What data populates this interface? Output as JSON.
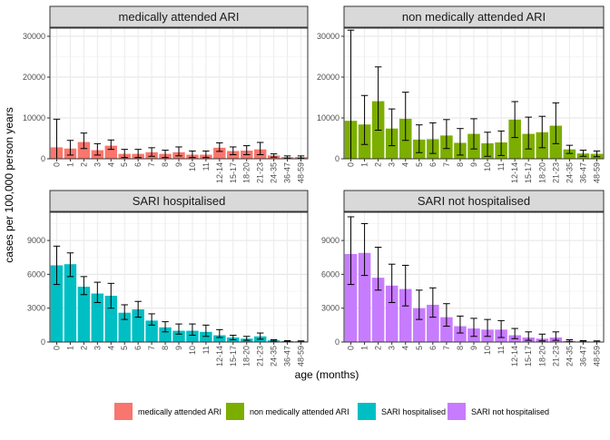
{
  "chart_data": {
    "type": "bar",
    "facet_layout": "2x2",
    "ylabel": "cases per 100,000 person years",
    "xlabel": "age (months)",
    "legend": {
      "position": "bottom",
      "entries": [
        {
          "name": "medically attended ARI",
          "color": "#F8766D"
        },
        {
          "name": "non medically attended ARI",
          "color": "#7CAE00"
        },
        {
          "name": "SARI hospitalised",
          "color": "#00BFC4"
        },
        {
          "name": "SARI not hospitalised",
          "color": "#C77CFF"
        }
      ]
    },
    "categories": [
      "0",
      "1",
      "2",
      "3",
      "4",
      "5",
      "6",
      "7",
      "8",
      "9",
      "10",
      "11",
      "12-14",
      "15-17",
      "18-20",
      "21-23",
      "24-35",
      "36-47",
      "48-59"
    ],
    "panels": [
      {
        "title": "medically attended ARI",
        "color": "#F8766D",
        "ylim": [
          0,
          32000
        ],
        "yticks": [
          0,
          10000,
          20000,
          30000
        ],
        "values": [
          2800,
          2500,
          4100,
          2100,
          3200,
          1200,
          1200,
          1600,
          1200,
          1600,
          1000,
          1000,
          2700,
          1900,
          2000,
          2300,
          800,
          400,
          400
        ],
        "err_low": [
          0,
          900,
          2500,
          900,
          2300,
          300,
          300,
          600,
          300,
          700,
          300,
          300,
          1800,
          1000,
          1000,
          1000,
          400,
          150,
          150
        ],
        "err_high": [
          9700,
          4500,
          6300,
          3700,
          4600,
          2300,
          2300,
          2700,
          2100,
          2900,
          1900,
          1900,
          3900,
          2900,
          3200,
          4000,
          1200,
          700,
          700
        ]
      },
      {
        "title": "non medically attended ARI",
        "color": "#7CAE00",
        "ylim": [
          0,
          32000
        ],
        "yticks": [
          0,
          10000,
          20000,
          30000
        ],
        "values": [
          9300,
          8400,
          14100,
          7400,
          9800,
          4700,
          4800,
          5700,
          3900,
          6100,
          3800,
          4000,
          9600,
          6100,
          6500,
          8100,
          2300,
          1300,
          1200
        ],
        "err_low": [
          0,
          3500,
          7000,
          3200,
          4500,
          1500,
          1300,
          2500,
          900,
          2400,
          600,
          800,
          5200,
          2400,
          2700,
          3700,
          1300,
          600,
          500
        ],
        "err_high": [
          31500,
          15500,
          22500,
          12200,
          16300,
          8300,
          8800,
          9600,
          7400,
          9800,
          6500,
          6800,
          14000,
          10200,
          10400,
          13700,
          3300,
          2100,
          1900
        ]
      },
      {
        "title": "SARI hospitalised",
        "color": "#00BFC4",
        "ylim": [
          0,
          11500
        ],
        "yticks": [
          0,
          3000,
          6000,
          9000
        ],
        "values": [
          6800,
          6900,
          4900,
          4300,
          4100,
          2600,
          2900,
          1900,
          1300,
          1000,
          1000,
          900,
          600,
          400,
          300,
          500,
          150,
          80,
          60
        ],
        "err_low": [
          5100,
          5800,
          4200,
          3500,
          3000,
          2000,
          2200,
          1500,
          900,
          700,
          600,
          500,
          400,
          200,
          150,
          250,
          80,
          40,
          30
        ],
        "err_high": [
          8500,
          7900,
          5800,
          5300,
          5200,
          3300,
          3600,
          2500,
          1800,
          1600,
          1600,
          1500,
          1100,
          600,
          500,
          800,
          200,
          120,
          100
        ]
      },
      {
        "title": "SARI not hospitalised",
        "color": "#C77CFF",
        "ylim": [
          0,
          11500
        ],
        "yticks": [
          0,
          3000,
          6000,
          9000
        ],
        "values": [
          7800,
          7900,
          5700,
          5000,
          4700,
          3000,
          3300,
          2200,
          1400,
          1200,
          1100,
          1100,
          600,
          400,
          300,
          400,
          100,
          60,
          40
        ],
        "err_low": [
          5100,
          5900,
          4600,
          3500,
          3200,
          2000,
          2200,
          1400,
          800,
          500,
          500,
          400,
          300,
          150,
          100,
          150,
          50,
          30,
          20
        ],
        "err_high": [
          11100,
          10500,
          8400,
          6900,
          6800,
          4600,
          4800,
          3400,
          2300,
          2100,
          2000,
          1900,
          1200,
          900,
          700,
          900,
          200,
          120,
          100
        ]
      }
    ]
  }
}
